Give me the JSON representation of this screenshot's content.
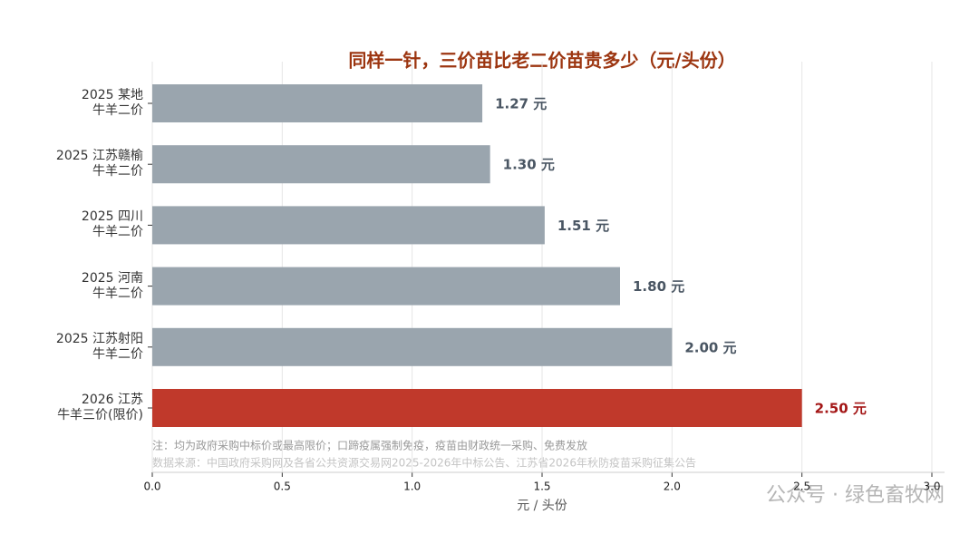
{
  "chart_data": {
    "type": "barh",
    "title": "同样一针，三价苗比老二价苗贵多少（元/头份）",
    "categories": [
      "2025 某地\n牛羊二价",
      "2025 江苏赣榆\n牛羊二价",
      "2025 四川\n牛羊二价",
      "2025 河南\n牛羊二价",
      "2025 江苏射阳\n牛羊二价",
      "2026 江苏\n牛羊三价(限价)"
    ],
    "values": [
      1.27,
      1.3,
      1.51,
      1.8,
      2.0,
      2.5
    ],
    "value_labels": [
      "1.27 元",
      "1.30 元",
      "1.51 元",
      "1.80 元",
      "2.00 元",
      "2.50 元"
    ],
    "colors": [
      "#9aa5ae",
      "#9aa5ae",
      "#9aa5ae",
      "#9aa5ae",
      "#9aa5ae",
      "#c0392b"
    ],
    "label_colors": [
      "#4a5663",
      "#4a5663",
      "#4a5663",
      "#4a5663",
      "#4a5663",
      "#a31515"
    ],
    "xlim": [
      0,
      3.0
    ],
    "xticks": [
      {
        "value": 0,
        "label": "0.0"
      },
      0.5,
      {
        "value": 1,
        "label": "1.0"
      },
      1.5,
      {
        "value": 2,
        "label": "2.0"
      },
      2.5,
      {
        "value": 3,
        "label": "3.0"
      }
    ],
    "xlabel": "元 / 头份",
    "grid": true,
    "annotations": [
      "注：均为政府采购中标价或最高限价；口蹄疫属强制免疫，疫苗由财政统一采购、免费发放",
      "数据来源：中国政府采购网及各省公共资源交易网2025-2026年中标公告、江苏省2026年秋防疫苗采购征集公告"
    ]
  },
  "watermark": "公众号 · 绿色畜牧网"
}
